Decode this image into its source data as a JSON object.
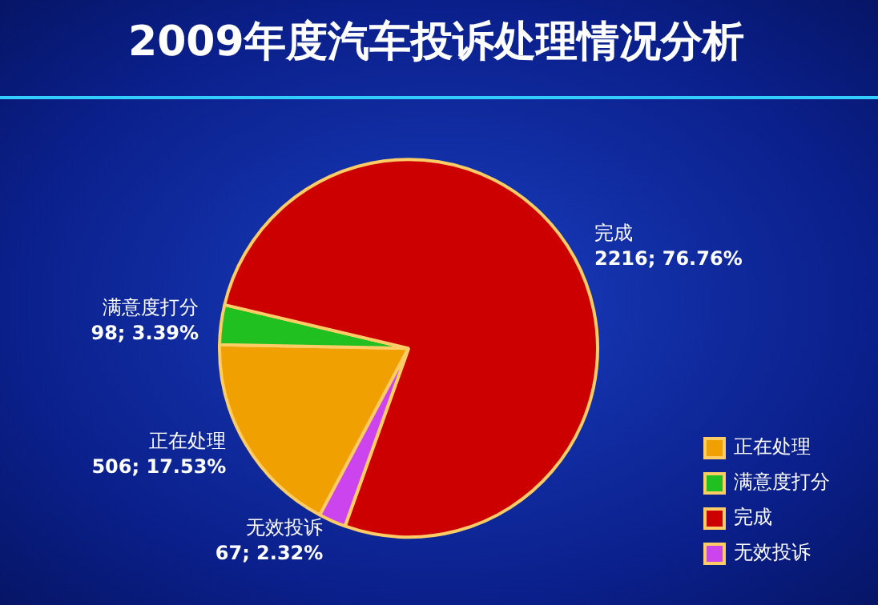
{
  "chart_data": {
    "type": "pie",
    "title": "2009年度汽车投诉处理情况分析",
    "categories": [
      "正在处理",
      "满意度打分",
      "完成",
      "无效投诉"
    ],
    "values": [
      506,
      98,
      2216,
      67
    ],
    "value_labels": [
      "506; 17.53%",
      "98; 3.39%",
      "2216; 76.76%",
      "67; 2.32%"
    ],
    "colors": [
      "#f0a000",
      "#20c020",
      "#cc0000",
      "#cc44ee"
    ],
    "legend": "bottom right"
  }
}
